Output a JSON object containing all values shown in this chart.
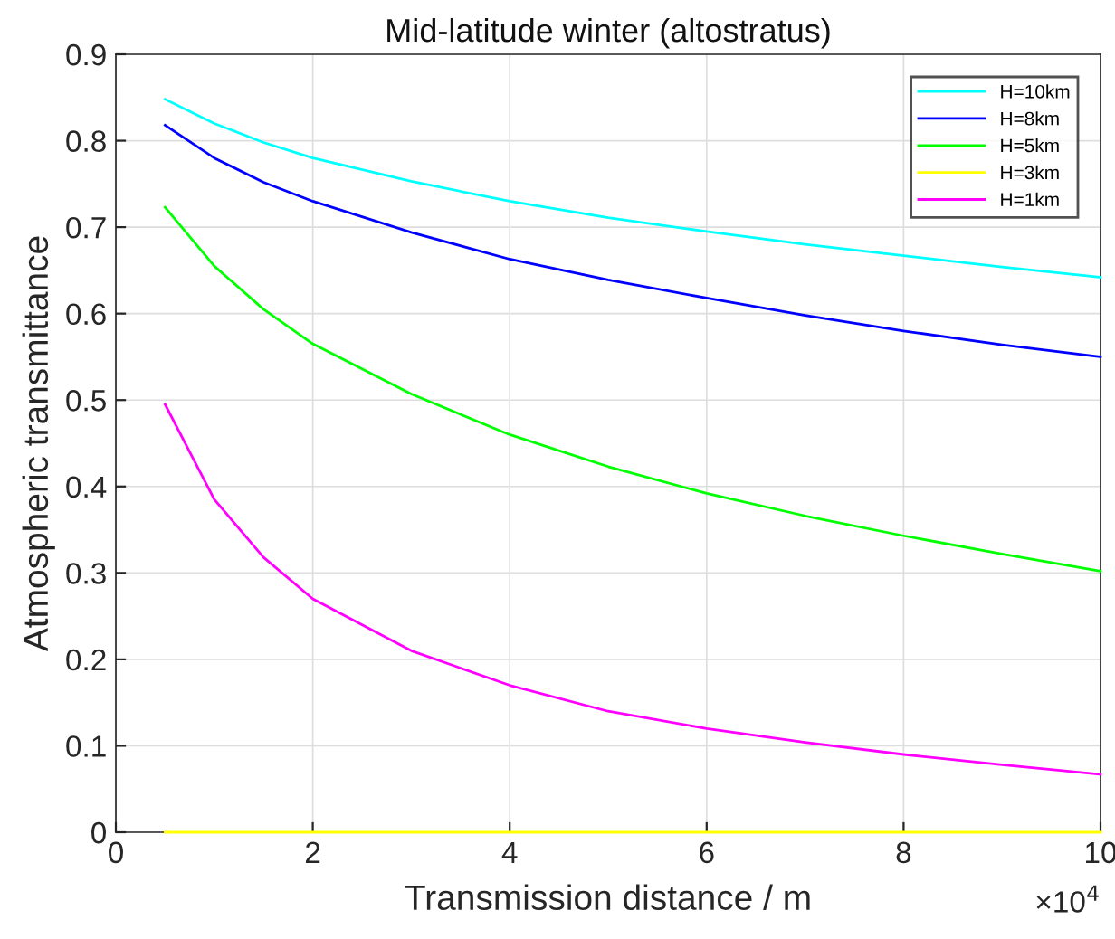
{
  "chart_data": {
    "type": "line",
    "title": "Mid-latitude winter (altostratus)",
    "xlabel": "Transmission distance / m",
    "ylabel": "Atmospheric transmittance",
    "x": [
      0.5,
      1,
      1.5,
      2,
      3,
      4,
      5,
      6,
      7,
      8,
      9,
      10
    ],
    "series": [
      {
        "name": "H=10km",
        "color": "#00ffff",
        "values": [
          0.848,
          0.82,
          0.798,
          0.78,
          0.753,
          0.73,
          0.711,
          0.695,
          0.68,
          0.667,
          0.654,
          0.642
        ]
      },
      {
        "name": "H=8km",
        "color": "#0000ff",
        "values": [
          0.818,
          0.78,
          0.752,
          0.73,
          0.694,
          0.663,
          0.639,
          0.618,
          0.598,
          0.58,
          0.564,
          0.55
        ]
      },
      {
        "name": "H=5km",
        "color": "#00ff00",
        "values": [
          0.723,
          0.655,
          0.605,
          0.565,
          0.507,
          0.46,
          0.423,
          0.392,
          0.366,
          0.343,
          0.322,
          0.302
        ]
      },
      {
        "name": "H=3km",
        "color": "#ffff00",
        "values": [
          0,
          0,
          0,
          0,
          0,
          0,
          0,
          0,
          0,
          0,
          0,
          0
        ]
      },
      {
        "name": "H=1km",
        "color": "#ff00ff",
        "values": [
          0.495,
          0.385,
          0.318,
          0.27,
          0.21,
          0.17,
          0.14,
          0.12,
          0.104,
          0.09,
          0.078,
          0.067
        ]
      }
    ],
    "xlim": [
      0,
      10
    ],
    "ylim": [
      0,
      0.9
    ],
    "xticks": [
      0,
      2,
      4,
      6,
      8,
      10
    ],
    "yticks": [
      0,
      0.1,
      0.2,
      0.3,
      0.4,
      0.5,
      0.6,
      0.7,
      0.8,
      0.9
    ],
    "annotations": [
      "×10$^{4}$"
    ],
    "grid": true,
    "legend": "top right",
    "marker": "none",
    "line_style": "solid"
  }
}
